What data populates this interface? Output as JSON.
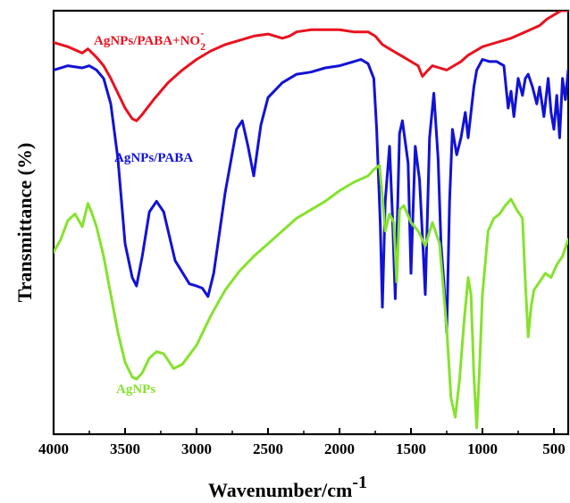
{
  "chart_data": {
    "type": "line",
    "xlabel": "Wavenumber/cm",
    "xlabel_superscript": "-1",
    "ylabel": "Transmittance (%)",
    "xlim": [
      4000,
      400
    ],
    "x_ticks": [
      4000,
      3500,
      3000,
      2500,
      2000,
      1500,
      1000,
      500
    ],
    "x_tick_labels": [
      "4000",
      "3500",
      "3000",
      "2500",
      "2000",
      "1500",
      "1000",
      "500"
    ],
    "y_axis": "relative transmittance, offset traces, no tick labels",
    "ylim": [
      0,
      100
    ],
    "grid": false,
    "legend": "inline labels",
    "series": [
      {
        "name": "AgNPs/PABA+NO2-",
        "label_parts": [
          "AgNPs/PABA+NO",
          "2",
          "-"
        ],
        "color": "#e8121f",
        "x": [
          4000,
          3900,
          3800,
          3760,
          3700,
          3650,
          3600,
          3550,
          3500,
          3450,
          3420,
          3380,
          3300,
          3200,
          3100,
          3000,
          2900,
          2800,
          2700,
          2600,
          2500,
          2400,
          2350,
          2300,
          2200,
          2100,
          2000,
          1900,
          1800,
          1750,
          1700,
          1650,
          1600,
          1550,
          1500,
          1450,
          1420,
          1380,
          1350,
          1300,
          1250,
          1200,
          1150,
          1100,
          1000,
          900,
          800,
          700,
          600,
          550,
          500,
          450,
          400
        ],
        "y": [
          92.5,
          91.5,
          90.0,
          91.0,
          89.0,
          87.0,
          84.0,
          80.5,
          77.0,
          74.5,
          74.0,
          75.5,
          79.0,
          83.0,
          86.0,
          88.5,
          90.5,
          92.0,
          93.0,
          94.0,
          94.5,
          93.5,
          94.0,
          95.0,
          95.5,
          95.5,
          95.5,
          95.0,
          95.0,
          94.0,
          92.0,
          91.0,
          90.0,
          89.0,
          88.0,
          87.0,
          84.5,
          86.0,
          87.0,
          86.5,
          86.0,
          87.0,
          88.0,
          89.5,
          91.5,
          92.5,
          93.5,
          95.0,
          96.5,
          98.0,
          99.0,
          100.0,
          100.0
        ]
      },
      {
        "name": "AgNPs/PABA",
        "color": "#1212d6",
        "x": [
          4000,
          3900,
          3800,
          3750,
          3700,
          3650,
          3600,
          3550,
          3500,
          3450,
          3420,
          3380,
          3330,
          3280,
          3230,
          3150,
          3050,
          3000,
          2960,
          2920,
          2880,
          2800,
          2720,
          2680,
          2640,
          2600,
          2550,
          2500,
          2400,
          2300,
          2200,
          2100,
          2000,
          1900,
          1850,
          1800,
          1760,
          1740,
          1715,
          1700,
          1680,
          1650,
          1630,
          1610,
          1600,
          1580,
          1560,
          1520,
          1500,
          1470,
          1440,
          1420,
          1400,
          1370,
          1340,
          1310,
          1290,
          1270,
          1250,
          1230,
          1210,
          1180,
          1150,
          1120,
          1100,
          1080,
          1060,
          1040,
          1000,
          950,
          900,
          850,
          820,
          800,
          780,
          750,
          720,
          700,
          680,
          650,
          620,
          600,
          570,
          540,
          520,
          500,
          480,
          460,
          440,
          420,
          400
        ],
        "y": [
          86.0,
          87.0,
          86.5,
          87.0,
          86.0,
          84.0,
          78.0,
          65.0,
          45.0,
          37.0,
          35.0,
          42.0,
          52.5,
          55.0,
          52.5,
          41.0,
          35.5,
          35.0,
          34.5,
          32.5,
          38.0,
          57.0,
          72.0,
          74.0,
          68.0,
          61.0,
          73.0,
          79.5,
          83.0,
          85.0,
          85.5,
          86.5,
          87.0,
          88.0,
          88.5,
          87.5,
          84.0,
          72.0,
          50.0,
          30.0,
          55.0,
          68.0,
          52.0,
          32.0,
          45.0,
          71.0,
          74.0,
          64.0,
          38.0,
          68.0,
          60.0,
          47.0,
          33.0,
          70.0,
          80.5,
          65.0,
          45.0,
          36.0,
          24.0,
          55.0,
          72.0,
          66.0,
          70.0,
          76.0,
          70.0,
          76.0,
          82.0,
          86.0,
          88.5,
          88.0,
          88.0,
          87.0,
          77.0,
          81.0,
          75.0,
          84.0,
          80.0,
          84.0,
          85.0,
          82.0,
          78.0,
          82.0,
          75.0,
          84.0,
          76.0,
          72.0,
          80.0,
          70.0,
          84.0,
          79.0,
          86.0
        ]
      },
      {
        "name": "AgNPs",
        "color": "#86e22d",
        "x": [
          4000,
          3950,
          3900,
          3850,
          3800,
          3760,
          3730,
          3700,
          3650,
          3600,
          3550,
          3500,
          3450,
          3420,
          3380,
          3330,
          3280,
          3230,
          3200,
          3160,
          3100,
          3000,
          2900,
          2800,
          2700,
          2600,
          2500,
          2400,
          2300,
          2200,
          2100,
          2000,
          1900,
          1800,
          1760,
          1720,
          1700,
          1680,
          1650,
          1620,
          1600,
          1580,
          1550,
          1500,
          1450,
          1400,
          1350,
          1300,
          1250,
          1220,
          1190,
          1160,
          1130,
          1100,
          1080,
          1060,
          1040,
          1020,
          1000,
          960,
          920,
          880,
          840,
          800,
          760,
          720,
          700,
          680,
          660,
          640,
          600,
          560,
          520,
          480,
          440,
          400
        ],
        "y": [
          43.0,
          46.0,
          50.5,
          52.0,
          49.0,
          54.5,
          52.0,
          49.0,
          42.0,
          33.0,
          24.0,
          17.0,
          13.5,
          13.0,
          14.5,
          18.0,
          19.5,
          19.0,
          17.5,
          15.5,
          16.5,
          21.0,
          28.0,
          34.0,
          38.5,
          42.0,
          45.0,
          48.0,
          51.0,
          53.0,
          55.0,
          57.5,
          59.5,
          61.0,
          62.5,
          63.5,
          56.0,
          48.0,
          52.0,
          50.0,
          36.0,
          53.0,
          54.0,
          50.0,
          48.0,
          44.5,
          50.0,
          45.0,
          25.0,
          8.5,
          4.0,
          13.0,
          26.0,
          37.0,
          33.0,
          14.0,
          1.5,
          16.0,
          33.0,
          48.0,
          51.0,
          52.0,
          54.0,
          55.5,
          53.0,
          51.0,
          36.0,
          23.0,
          30.0,
          34.0,
          36.0,
          38.0,
          37.0,
          40.0,
          42.0,
          46.0
        ]
      }
    ]
  }
}
